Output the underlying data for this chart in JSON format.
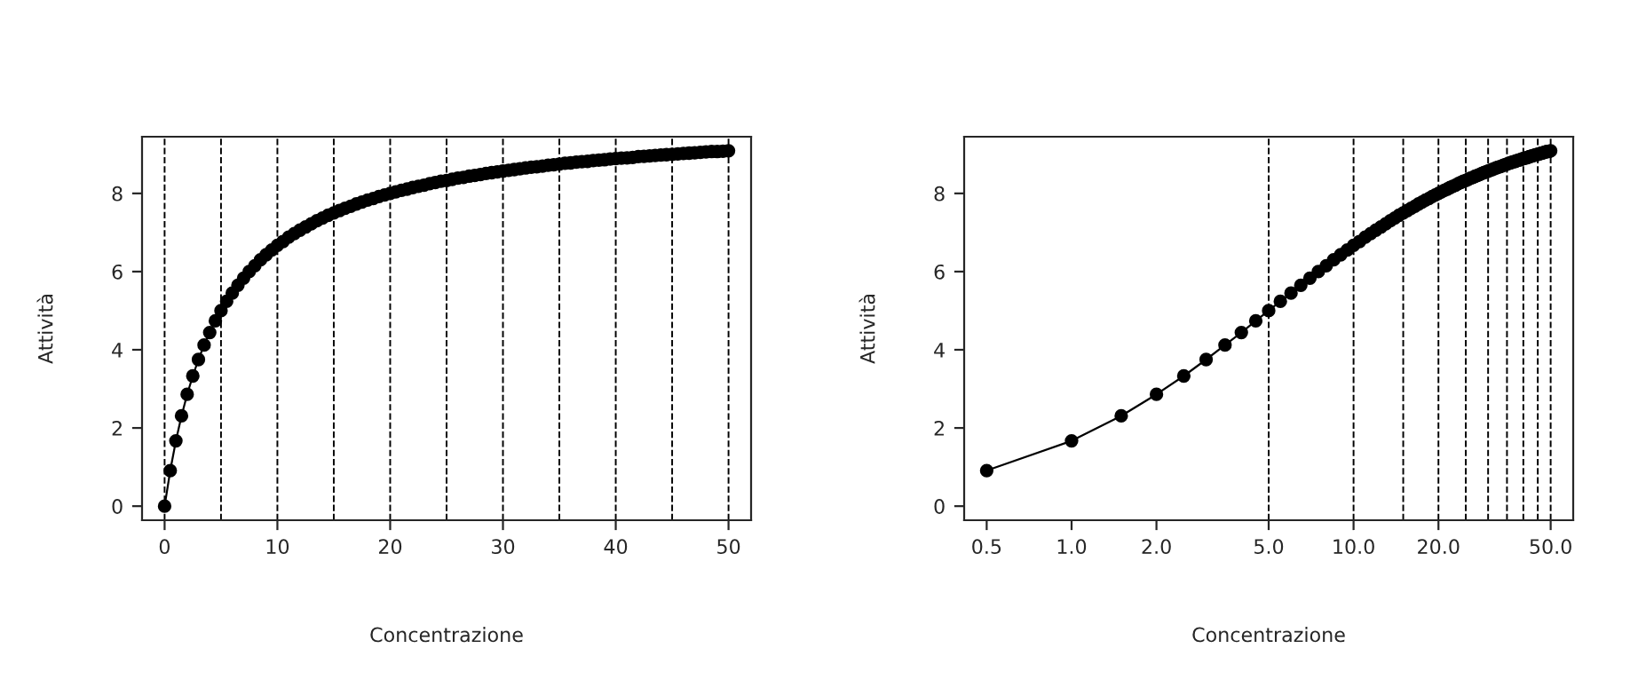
{
  "chart_data": [
    {
      "type": "line",
      "xlabel": "Concentrazione",
      "ylabel": "Attività",
      "marker": "circle",
      "line_style": "solid",
      "x": [
        0,
        0.5,
        1,
        1.5,
        2,
        2.5,
        3,
        3.5,
        4,
        4.5,
        5,
        5.5,
        6,
        6.5,
        7,
        7.5,
        8,
        8.5,
        9,
        9.5,
        10,
        10.5,
        11,
        11.5,
        12,
        12.5,
        13,
        13.5,
        14,
        14.5,
        15,
        15.5,
        16,
        16.5,
        17,
        17.5,
        18,
        18.5,
        19,
        19.5,
        20,
        20.5,
        21,
        21.5,
        22,
        22.5,
        23,
        23.5,
        24,
        24.5,
        25,
        25.5,
        26,
        26.5,
        27,
        27.5,
        28,
        28.5,
        29,
        29.5,
        30,
        30.5,
        31,
        31.5,
        32,
        32.5,
        33,
        33.5,
        34,
        34.5,
        35,
        35.5,
        36,
        36.5,
        37,
        37.5,
        38,
        38.5,
        39,
        39.5,
        40,
        40.5,
        41,
        41.5,
        42,
        42.5,
        43,
        43.5,
        44,
        44.5,
        45,
        45.5,
        46,
        46.5,
        47,
        47.5,
        48,
        48.5,
        49,
        49.5,
        50
      ],
      "series": [
        {
          "color": "#000000",
          "values": [
            0,
            0.91,
            1.67,
            2.31,
            2.86,
            3.33,
            3.75,
            4.12,
            4.44,
            4.74,
            5,
            5.24,
            5.45,
            5.65,
            5.83,
            6,
            6.15,
            6.3,
            6.43,
            6.55,
            6.67,
            6.77,
            6.88,
            6.97,
            7.06,
            7.14,
            7.22,
            7.3,
            7.37,
            7.44,
            7.5,
            7.56,
            7.62,
            7.67,
            7.73,
            7.78,
            7.83,
            7.87,
            7.92,
            7.96,
            8,
            8.04,
            8.08,
            8.11,
            8.15,
            8.18,
            8.21,
            8.25,
            8.28,
            8.31,
            8.33,
            8.36,
            8.39,
            8.41,
            8.44,
            8.46,
            8.48,
            8.51,
            8.53,
            8.55,
            8.57,
            8.59,
            8.61,
            8.63,
            8.65,
            8.67,
            8.68,
            8.7,
            8.72,
            8.73,
            8.75,
            8.77,
            8.78,
            8.8,
            8.81,
            8.82,
            8.84,
            8.85,
            8.86,
            8.88,
            8.89,
            8.9,
            8.91,
            8.92,
            8.94,
            8.95,
            8.96,
            8.97,
            8.98,
            8.99,
            9,
            9.01,
            9.02,
            9.03,
            9.04,
            9.05,
            9.06,
            9.07,
            9.07,
            9.08,
            9.09
          ]
        }
      ],
      "xlim": [
        -2,
        52
      ],
      "ylim": [
        -0.36,
        9.45
      ],
      "xticks": [
        0,
        10,
        20,
        30,
        40,
        50
      ],
      "yticks": [
        0,
        2,
        4,
        6,
        8
      ],
      "ref_lines": [
        {
          "axis": "x",
          "value": 0
        },
        {
          "axis": "x",
          "value": 5
        },
        {
          "axis": "x",
          "value": 10
        },
        {
          "axis": "x",
          "value": 15
        },
        {
          "axis": "x",
          "value": 20
        },
        {
          "axis": "x",
          "value": 25
        },
        {
          "axis": "x",
          "value": 30
        },
        {
          "axis": "x",
          "value": 35
        },
        {
          "axis": "x",
          "value": 40
        },
        {
          "axis": "x",
          "value": 45
        },
        {
          "axis": "x",
          "value": 50
        }
      ]
    },
    {
      "type": "line",
      "xlabel": "Concentrazione",
      "ylabel": "Attività",
      "marker": "circle",
      "line_style": "solid",
      "log": "x",
      "x": [
        0.5,
        1,
        1.5,
        2,
        2.5,
        3,
        3.5,
        4,
        4.5,
        5,
        5.5,
        6,
        6.5,
        7,
        7.5,
        8,
        8.5,
        9,
        9.5,
        10,
        10.5,
        11,
        11.5,
        12,
        12.5,
        13,
        13.5,
        14,
        14.5,
        15,
        15.5,
        16,
        16.5,
        17,
        17.5,
        18,
        18.5,
        19,
        19.5,
        20,
        20.5,
        21,
        21.5,
        22,
        22.5,
        23,
        23.5,
        24,
        24.5,
        25,
        25.5,
        26,
        26.5,
        27,
        27.5,
        28,
        28.5,
        29,
        29.5,
        30,
        30.5,
        31,
        31.5,
        32,
        32.5,
        33,
        33.5,
        34,
        34.5,
        35,
        35.5,
        36,
        36.5,
        37,
        37.5,
        38,
        38.5,
        39,
        39.5,
        40,
        40.5,
        41,
        41.5,
        42,
        42.5,
        43,
        43.5,
        44,
        44.5,
        45,
        45.5,
        46,
        46.5,
        47,
        47.5,
        48,
        48.5,
        49,
        49.5,
        50
      ],
      "series": [
        {
          "color": "#000000",
          "values": [
            0.91,
            1.67,
            2.31,
            2.86,
            3.33,
            3.75,
            4.12,
            4.44,
            4.74,
            5,
            5.24,
            5.45,
            5.65,
            5.83,
            6,
            6.15,
            6.3,
            6.43,
            6.55,
            6.67,
            6.77,
            6.88,
            6.97,
            7.06,
            7.14,
            7.22,
            7.3,
            7.37,
            7.44,
            7.5,
            7.56,
            7.62,
            7.67,
            7.73,
            7.78,
            7.83,
            7.87,
            7.92,
            7.96,
            8,
            8.04,
            8.08,
            8.11,
            8.15,
            8.18,
            8.21,
            8.25,
            8.28,
            8.31,
            8.33,
            8.36,
            8.39,
            8.41,
            8.44,
            8.46,
            8.48,
            8.51,
            8.53,
            8.55,
            8.57,
            8.59,
            8.61,
            8.63,
            8.65,
            8.67,
            8.68,
            8.7,
            8.72,
            8.73,
            8.75,
            8.77,
            8.78,
            8.8,
            8.81,
            8.82,
            8.84,
            8.85,
            8.86,
            8.88,
            8.89,
            8.9,
            8.91,
            8.92,
            8.94,
            8.95,
            8.96,
            8.97,
            8.98,
            8.99,
            9,
            9.01,
            9.02,
            9.03,
            9.04,
            9.05,
            9.06,
            9.07,
            9.07,
            9.08,
            9.09
          ]
        }
      ],
      "xlim": [
        0.416,
        60.1
      ],
      "ylim": [
        -0.36,
        9.45
      ],
      "xticks": [
        {
          "value": 0.5,
          "label": "0.5"
        },
        {
          "value": 1,
          "label": "1.0"
        },
        {
          "value": 2,
          "label": "2.0"
        },
        {
          "value": 5,
          "label": "5.0"
        },
        {
          "value": 10,
          "label": "10.0"
        },
        {
          "value": 20,
          "label": "20.0"
        },
        {
          "value": 50,
          "label": "50.0"
        }
      ],
      "yticks": [
        0,
        2,
        4,
        6,
        8
      ],
      "ref_lines": [
        {
          "axis": "x",
          "value": 5
        },
        {
          "axis": "x",
          "value": 10
        },
        {
          "axis": "x",
          "value": 15
        },
        {
          "axis": "x",
          "value": 20
        },
        {
          "axis": "x",
          "value": 25
        },
        {
          "axis": "x",
          "value": 30
        },
        {
          "axis": "x",
          "value": 35
        },
        {
          "axis": "x",
          "value": 40
        },
        {
          "axis": "x",
          "value": 45
        },
        {
          "axis": "x",
          "value": 50
        }
      ]
    }
  ]
}
